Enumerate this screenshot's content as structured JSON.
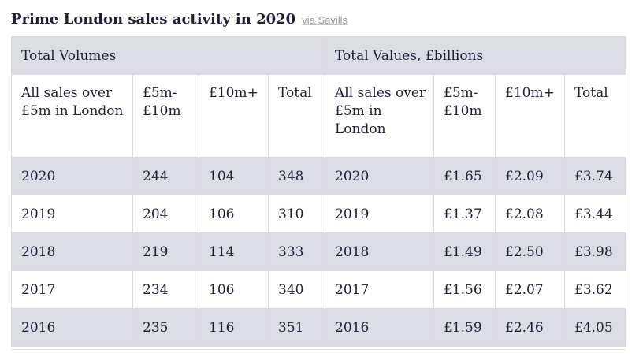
{
  "title": "Prime London sales activity in 2020",
  "source": "via Savills",
  "groups": {
    "volumes": "Total Volumes",
    "values": "Total Values, £billions"
  },
  "headers": [
    "All sales over £5m in London",
    "£5m-£10m",
    "£10m+",
    "Total",
    "All sales over £5m in London",
    "£5m-£10m",
    "£10m+",
    "Total"
  ],
  "rows": [
    [
      "2020",
      "244",
      "104",
      "348",
      "2020",
      "£1.65",
      "£2.09",
      "£3.74"
    ],
    [
      "2019",
      "204",
      "106",
      "310",
      "2019",
      "£1.37",
      "£2.08",
      "£3.44"
    ],
    [
      "2018",
      "219",
      "114",
      "333",
      "2018",
      "£1.49",
      "£2.50",
      "£3.98"
    ],
    [
      "2017",
      "234",
      "106",
      "340",
      "2017",
      "£1.56",
      "£2.07",
      "£3.62"
    ],
    [
      "2016",
      "235",
      "116",
      "351",
      "2016",
      "£1.59",
      "£2.46",
      "£4.05"
    ]
  ],
  "colors": {
    "band": "#dcdce4",
    "text": "#1f1f3a",
    "source": "#9a9aa6"
  }
}
